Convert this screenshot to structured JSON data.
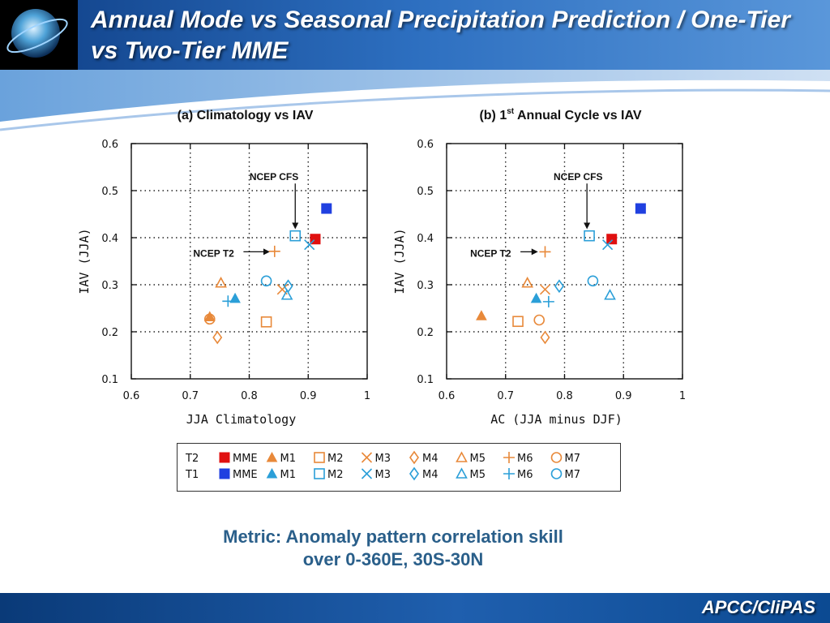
{
  "slide": {
    "title": "Annual Mode vs Seasonal Precipitation Prediction / One-Tier vs Two-Tier MME",
    "metric_line1": "Metric: Anomaly pattern correlation skill",
    "metric_line2": "over 0-360E, 30S-30N",
    "brand": "APCC/CliPAS"
  },
  "colors": {
    "T2": "#e8893a",
    "T1": "#2b9fd8",
    "T2_MME": "#e01010",
    "T1_MME": "#2040e0",
    "header": "#1b4f9c"
  },
  "legend": {
    "rows": [
      {
        "label": "T2",
        "items": [
          {
            "marker": "filled-square",
            "color": "#e01010",
            "text": "MME"
          },
          {
            "marker": "filled-triangle",
            "color": "#e8893a",
            "text": "M1"
          },
          {
            "marker": "square",
            "color": "#e8893a",
            "text": "M2"
          },
          {
            "marker": "x",
            "color": "#e8893a",
            "text": "M3"
          },
          {
            "marker": "diamond",
            "color": "#e8893a",
            "text": "M4"
          },
          {
            "marker": "triangle",
            "color": "#e8893a",
            "text": "M5"
          },
          {
            "marker": "plus",
            "color": "#e8893a",
            "text": "M6"
          },
          {
            "marker": "circle",
            "color": "#e8893a",
            "text": "M7"
          }
        ]
      },
      {
        "label": "T1",
        "items": [
          {
            "marker": "filled-square",
            "color": "#2040e0",
            "text": "MME"
          },
          {
            "marker": "filled-triangle",
            "color": "#2b9fd8",
            "text": "M1"
          },
          {
            "marker": "square",
            "color": "#2b9fd8",
            "text": "M2"
          },
          {
            "marker": "x",
            "color": "#2b9fd8",
            "text": "M3"
          },
          {
            "marker": "diamond",
            "color": "#2b9fd8",
            "text": "M4"
          },
          {
            "marker": "triangle",
            "color": "#2b9fd8",
            "text": "M5"
          },
          {
            "marker": "plus",
            "color": "#2b9fd8",
            "text": "M6"
          },
          {
            "marker": "circle",
            "color": "#2b9fd8",
            "text": "M7"
          }
        ]
      }
    ]
  },
  "chart_data": [
    {
      "type": "scatter",
      "title": "(a) Climatology vs IAV",
      "xlabel": "JJA Climatology",
      "ylabel": "IAV (JJA)",
      "xlim": [
        0.6,
        1.0
      ],
      "ylim": [
        0.1,
        0.6
      ],
      "xticks": [
        "0.6",
        "0.7",
        "0.8",
        "0.9",
        "1"
      ],
      "yticks": [
        "0.1",
        "0.2",
        "0.3",
        "0.4",
        "0.5",
        "0.6"
      ],
      "grid": true,
      "annotations": [
        "NCEP CFS",
        "NCEP T2"
      ],
      "series": [
        {
          "name": "T2",
          "points": [
            {
              "label": "MME",
              "marker": "filled-square",
              "x": 0.912,
              "y": 0.397
            },
            {
              "label": "M1",
              "marker": "filled-triangle",
              "x": 0.733,
              "y": 0.232
            },
            {
              "label": "M2",
              "marker": "square",
              "x": 0.829,
              "y": 0.221
            },
            {
              "label": "M3",
              "marker": "x",
              "x": 0.856,
              "y": 0.29
            },
            {
              "label": "M4",
              "marker": "diamond",
              "x": 0.746,
              "y": 0.188
            },
            {
              "label": "M5",
              "marker": "triangle",
              "x": 0.752,
              "y": 0.304
            },
            {
              "label": "M6",
              "marker": "plus",
              "x": 0.843,
              "y": 0.371
            },
            {
              "label": "M7",
              "marker": "circle",
              "x": 0.733,
              "y": 0.227
            }
          ]
        },
        {
          "name": "T1",
          "points": [
            {
              "label": "MME",
              "marker": "filled-square",
              "x": 0.931,
              "y": 0.462
            },
            {
              "label": "M1",
              "marker": "filled-triangle",
              "x": 0.776,
              "y": 0.271
            },
            {
              "label": "M2",
              "marker": "square",
              "x": 0.878,
              "y": 0.404
            },
            {
              "label": "M3",
              "marker": "x",
              "x": 0.902,
              "y": 0.385
            },
            {
              "label": "M4",
              "marker": "diamond",
              "x": 0.866,
              "y": 0.297
            },
            {
              "label": "M5",
              "marker": "triangle",
              "x": 0.864,
              "y": 0.278
            },
            {
              "label": "M6",
              "marker": "plus",
              "x": 0.764,
              "y": 0.265
            },
            {
              "label": "M7",
              "marker": "circle",
              "x": 0.829,
              "y": 0.308
            }
          ]
        }
      ]
    },
    {
      "type": "scatter",
      "title": "(b) 1st Annual Cycle vs IAV",
      "title_parts": [
        "(b) 1",
        "st",
        " Annual Cycle vs IAV"
      ],
      "xlabel": "AC (JJA minus DJF)",
      "ylabel": "IAV (JJA)",
      "xlim": [
        0.6,
        1.0
      ],
      "ylim": [
        0.1,
        0.6
      ],
      "xticks": [
        "0.6",
        "0.7",
        "0.8",
        "0.9",
        "1"
      ],
      "yticks": [
        "0.1",
        "0.2",
        "0.3",
        "0.4",
        "0.5",
        "0.6"
      ],
      "grid": true,
      "annotations": [
        "NCEP CFS",
        "NCEP T2"
      ],
      "series": [
        {
          "name": "T2",
          "points": [
            {
              "label": "MME",
              "marker": "filled-square",
              "x": 0.88,
              "y": 0.397
            },
            {
              "label": "M1",
              "marker": "filled-triangle",
              "x": 0.659,
              "y": 0.234
            },
            {
              "label": "M2",
              "marker": "square",
              "x": 0.721,
              "y": 0.222
            },
            {
              "label": "M3",
              "marker": "x",
              "x": 0.767,
              "y": 0.29
            },
            {
              "label": "M4",
              "marker": "diamond",
              "x": 0.767,
              "y": 0.188
            },
            {
              "label": "M5",
              "marker": "triangle",
              "x": 0.737,
              "y": 0.304
            },
            {
              "label": "M6",
              "marker": "plus",
              "x": 0.767,
              "y": 0.37
            },
            {
              "label": "M7",
              "marker": "circle",
              "x": 0.757,
              "y": 0.225
            }
          ]
        },
        {
          "name": "T1",
          "points": [
            {
              "label": "MME",
              "marker": "filled-square",
              "x": 0.929,
              "y": 0.462
            },
            {
              "label": "M1",
              "marker": "filled-triangle",
              "x": 0.752,
              "y": 0.271
            },
            {
              "label": "M2",
              "marker": "square",
              "x": 0.842,
              "y": 0.404
            },
            {
              "label": "M3",
              "marker": "x",
              "x": 0.873,
              "y": 0.385
            },
            {
              "label": "M4",
              "marker": "diamond",
              "x": 0.791,
              "y": 0.297
            },
            {
              "label": "M5",
              "marker": "triangle",
              "x": 0.877,
              "y": 0.278
            },
            {
              "label": "M6",
              "marker": "plus",
              "x": 0.773,
              "y": 0.264
            },
            {
              "label": "M7",
              "marker": "circle",
              "x": 0.848,
              "y": 0.308
            }
          ]
        }
      ]
    }
  ]
}
